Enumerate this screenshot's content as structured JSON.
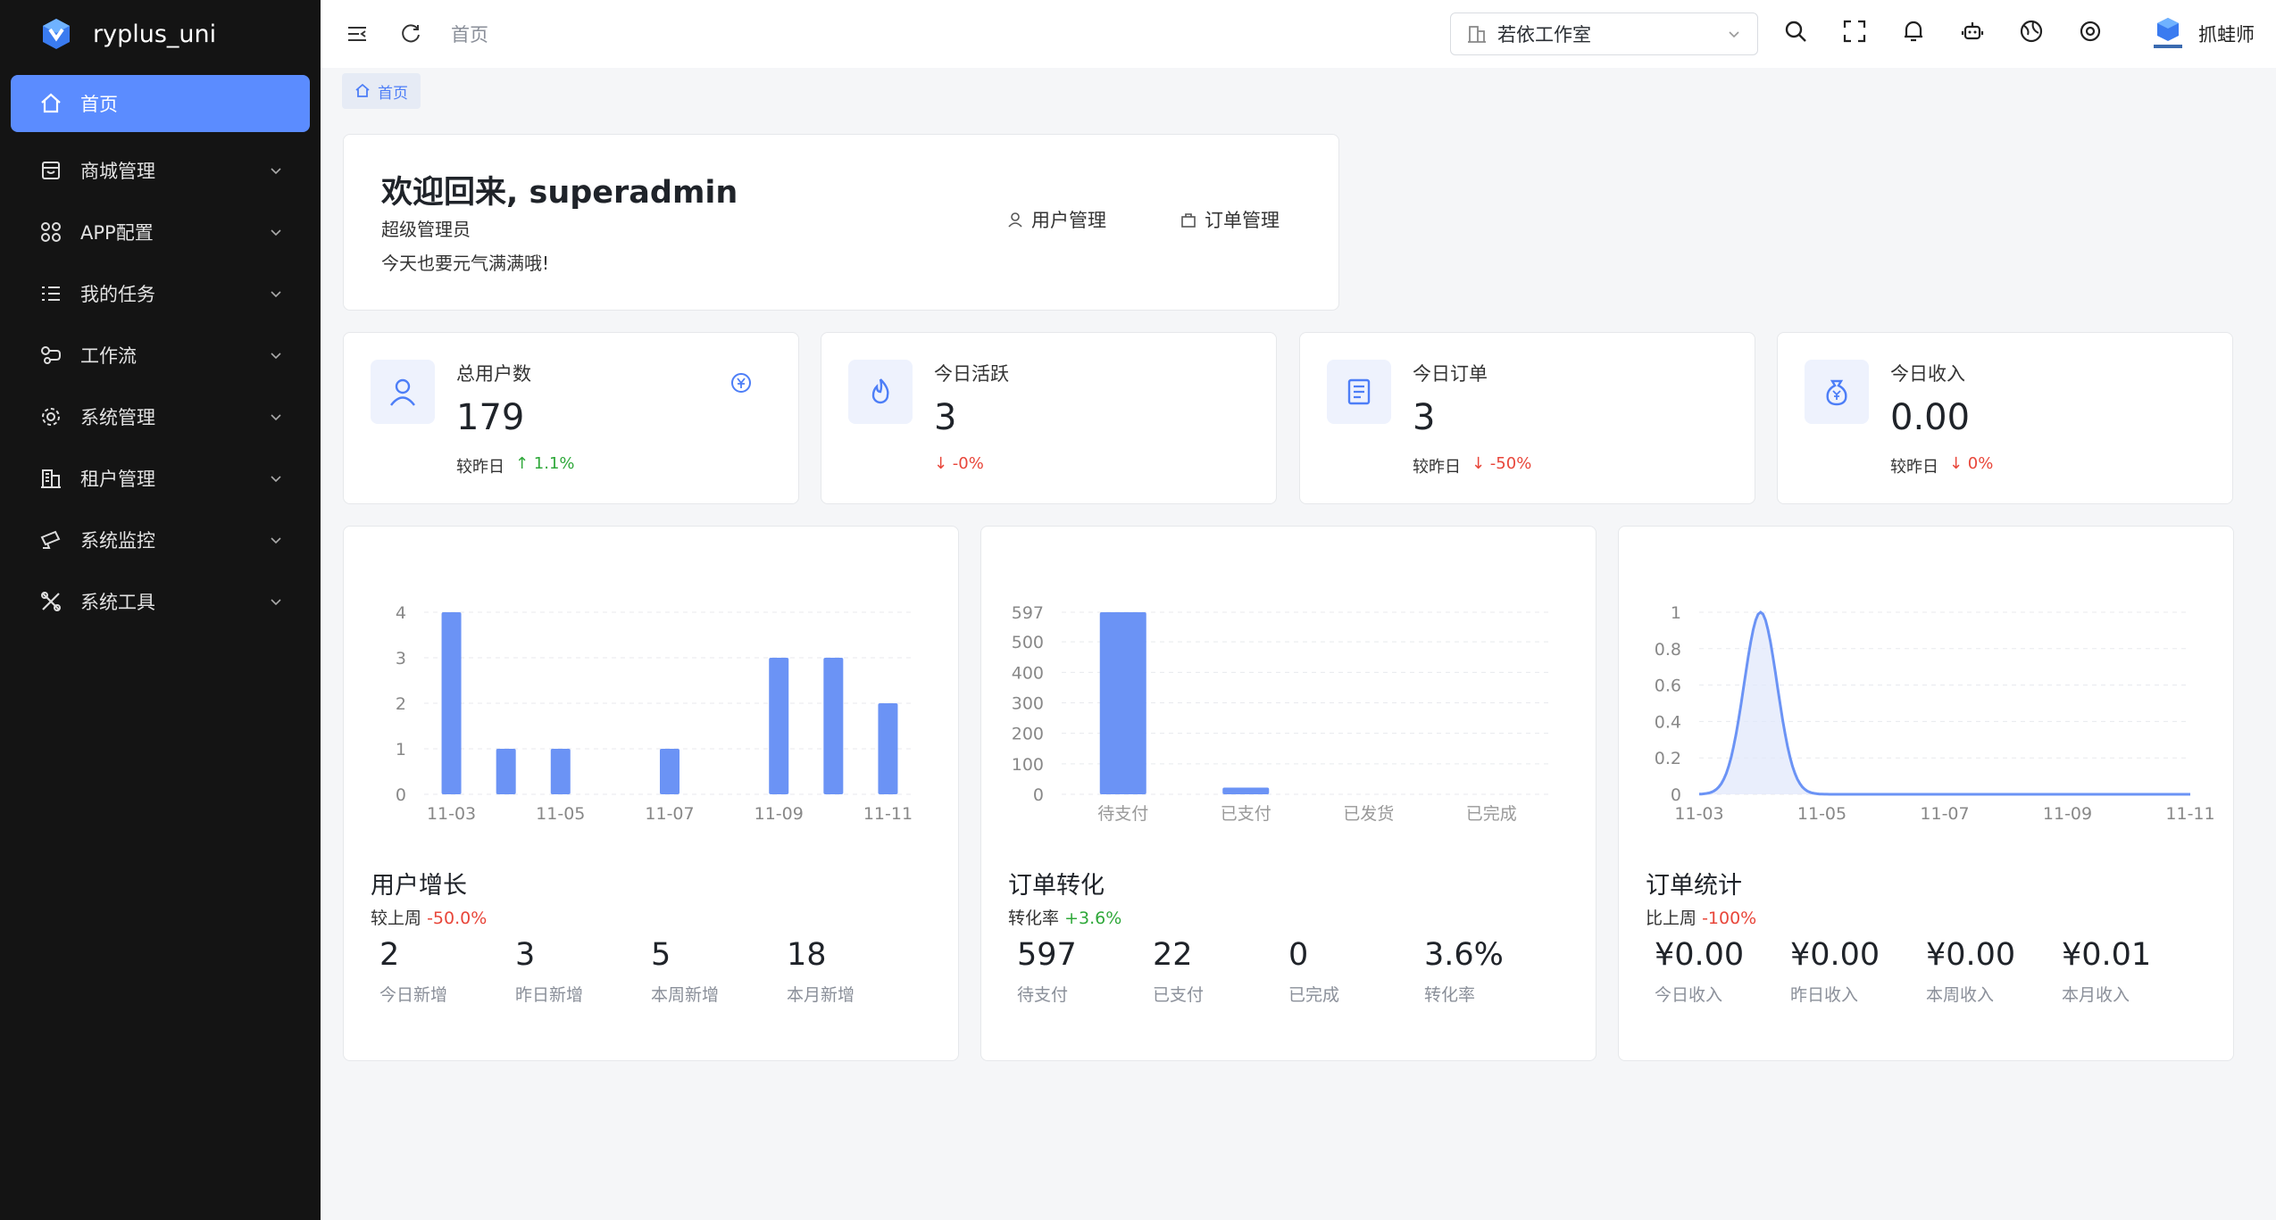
{
  "app": {
    "name": "ryplus_uni"
  },
  "sidebar": {
    "items": [
      {
        "label": "首页",
        "icon": "home-icon",
        "active": true
      },
      {
        "label": "商城管理",
        "icon": "store-icon"
      },
      {
        "label": "APP配置",
        "icon": "apps-icon"
      },
      {
        "label": "我的任务",
        "icon": "task-list-icon"
      },
      {
        "label": "工作流",
        "icon": "workflow-icon"
      },
      {
        "label": "系统管理",
        "icon": "gear-icon"
      },
      {
        "label": "租户管理",
        "icon": "building-icon"
      },
      {
        "label": "系统监控",
        "icon": "monitor-camera-icon"
      },
      {
        "label": "系统工具",
        "icon": "tools-icon"
      }
    ]
  },
  "header": {
    "breadcrumb": "首页",
    "tenant": "若依工作室",
    "user_name": "抓蛙师",
    "tools": [
      "search-icon",
      "fullscreen-icon",
      "bell-icon",
      "robot-icon",
      "globe-icon",
      "settings-icon"
    ]
  },
  "tabs": [
    {
      "label": "首页"
    }
  ],
  "welcome": {
    "title": "欢迎回来, superadmin",
    "role": "超级管理员",
    "message": "今天也要元气满满哦!",
    "quick_links": [
      {
        "label": "用户管理",
        "icon": "user-icon"
      },
      {
        "label": "订单管理",
        "icon": "bag-icon"
      }
    ]
  },
  "stats": [
    {
      "label": "总用户数",
      "value": "179",
      "compare_label": "较昨日",
      "change": "↑ 1.1%",
      "trend": "up",
      "icon": "user-icon"
    },
    {
      "label": "今日活跃",
      "value": "3",
      "compare_label": "",
      "change": "↓ -0%",
      "trend": "down",
      "icon": "fire-icon"
    },
    {
      "label": "今日订单",
      "value": "3",
      "compare_label": "较昨日",
      "change": "↓ -50%",
      "trend": "down",
      "icon": "document-icon"
    },
    {
      "label": "今日收入",
      "value": "0.00",
      "compare_label": "较昨日",
      "change": "↓ 0%",
      "trend": "down",
      "icon": "money-bag-icon"
    }
  ],
  "colors": {
    "accent": "#5b8cff",
    "bar": "#6b93f5",
    "up": "#2fa83a",
    "down": "#e8463a",
    "sidebar_bg": "#141414"
  },
  "panels": [
    {
      "title": "用户增长",
      "sub_label": "较上周",
      "sub_value": "-50.0%",
      "sub_trend": "down",
      "metrics": [
        {
          "value": "2",
          "label": "今日新增"
        },
        {
          "value": "3",
          "label": "昨日新增"
        },
        {
          "value": "5",
          "label": "本周新增"
        },
        {
          "value": "18",
          "label": "本月新增"
        }
      ]
    },
    {
      "title": "订单转化",
      "sub_label": "转化率",
      "sub_value": "+3.6%",
      "sub_trend": "up",
      "metrics": [
        {
          "value": "597",
          "label": "待支付"
        },
        {
          "value": "22",
          "label": "已支付"
        },
        {
          "value": "0",
          "label": "已完成"
        },
        {
          "value": "3.6%",
          "label": "转化率"
        }
      ]
    },
    {
      "title": "订单统计",
      "sub_label": "比上周",
      "sub_value": "-100%",
      "sub_trend": "down",
      "metrics": [
        {
          "value": "¥0.00",
          "label": "今日收入"
        },
        {
          "value": "¥0.00",
          "label": "昨日收入"
        },
        {
          "value": "¥0.00",
          "label": "本周收入"
        },
        {
          "value": "¥0.01",
          "label": "本月收入"
        }
      ]
    }
  ],
  "chart_data": [
    {
      "type": "bar",
      "categories": [
        "11-03",
        "11-04",
        "11-05",
        "11-06",
        "11-07",
        "11-08",
        "11-09",
        "11-10",
        "11-11"
      ],
      "tick_labels": [
        "11-03",
        "11-05",
        "11-07",
        "11-09",
        "11-11"
      ],
      "values": [
        4,
        1,
        1,
        0,
        1,
        0,
        3,
        3,
        2
      ],
      "ylim": [
        0,
        4
      ],
      "yticks": [
        0,
        1,
        2,
        3,
        4
      ],
      "grid": true
    },
    {
      "type": "bar",
      "categories": [
        "待支付",
        "已支付",
        "已发货",
        "已完成"
      ],
      "values": [
        597,
        22,
        0,
        0
      ],
      "ylim": [
        0,
        597
      ],
      "yticks": [
        0,
        100,
        200,
        300,
        400,
        500,
        597
      ],
      "grid": true
    },
    {
      "type": "area",
      "x": [
        "11-03",
        "11-04",
        "11-05",
        "11-06",
        "11-07",
        "11-08",
        "11-09",
        "11-10",
        "11-11"
      ],
      "tick_labels": [
        "11-03",
        "11-05",
        "11-07",
        "11-09",
        "11-11"
      ],
      "values": [
        0,
        1,
        0,
        0,
        0,
        0,
        0,
        0,
        0
      ],
      "ylim": [
        0,
        1
      ],
      "yticks": [
        0,
        0.2,
        0.4,
        0.6,
        0.8,
        1
      ],
      "grid": true,
      "smooth": true
    }
  ]
}
